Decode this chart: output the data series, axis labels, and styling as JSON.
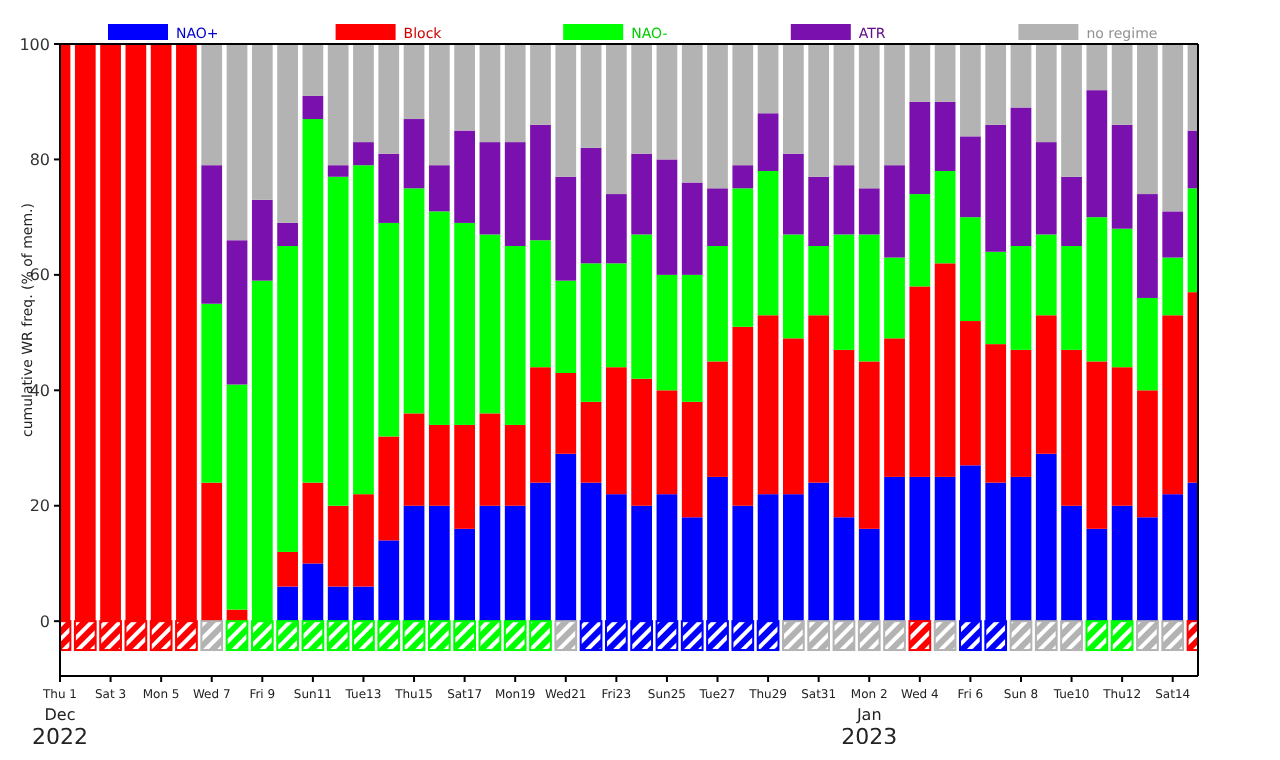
{
  "chart_data": {
    "type": "bar",
    "stacked": true,
    "ylabel": "cumulative WR freq. (% of mem.)",
    "categories": [
      "Thu 1",
      null,
      "Sat 3",
      null,
      "Mon 5",
      null,
      "Wed 7",
      null,
      "Fri 9",
      null,
      "Sun11",
      null,
      "Tue13",
      null,
      "Thu15",
      null,
      "Sat17",
      null,
      "Mon19",
      null,
      "Wed21",
      null,
      "Fri23",
      null,
      "Sun25",
      null,
      "Tue27",
      null,
      "Thu29",
      null,
      "Sat31",
      null,
      "Mon 2",
      null,
      "Wed 4",
      null,
      "Fri 6",
      null,
      "Sun 8",
      null,
      "Tue10",
      null,
      "Thu12",
      null,
      "Sat14",
      null
    ],
    "series": [
      {
        "name": "NAO+",
        "color": "#0000ff",
        "values": [
          0,
          0,
          0,
          0,
          0,
          0,
          0,
          0,
          0,
          6,
          10,
          6,
          6,
          14,
          20,
          20,
          16,
          20,
          20,
          24,
          29,
          24,
          22,
          20,
          22,
          18,
          25,
          20,
          22,
          22,
          24,
          18,
          16,
          25,
          25,
          25,
          27,
          24,
          25,
          29,
          20,
          16,
          20,
          18,
          22,
          24
        ]
      },
      {
        "name": "Block",
        "color": "#ff0000",
        "values": [
          100,
          100,
          100,
          100,
          100,
          100,
          24,
          2,
          0,
          6,
          14,
          14,
          16,
          18,
          16,
          14,
          18,
          16,
          14,
          20,
          14,
          14,
          22,
          22,
          18,
          20,
          20,
          31,
          31,
          27,
          29,
          29,
          29,
          24,
          33,
          37,
          25,
          24,
          22,
          24,
          27,
          29,
          24,
          22,
          31,
          33
        ]
      },
      {
        "name": "NAO-",
        "color": "#00ff00",
        "values": [
          0,
          0,
          0,
          0,
          0,
          0,
          31,
          39,
          59,
          53,
          63,
          57,
          57,
          37,
          39,
          37,
          35,
          31,
          31,
          22,
          16,
          24,
          18,
          25,
          20,
          22,
          20,
          24,
          25,
          18,
          12,
          20,
          22,
          14,
          16,
          16,
          18,
          16,
          18,
          14,
          18,
          25,
          24,
          16,
          10,
          18
        ]
      },
      {
        "name": "ATR",
        "color": "#7a10ad",
        "values": [
          0,
          0,
          0,
          0,
          0,
          0,
          24,
          25,
          14,
          4,
          4,
          2,
          4,
          12,
          12,
          8,
          16,
          16,
          18,
          20,
          18,
          20,
          12,
          14,
          20,
          16,
          10,
          4,
          10,
          14,
          12,
          12,
          8,
          16,
          16,
          12,
          14,
          22,
          24,
          16,
          12,
          22,
          18,
          18,
          8,
          10
        ]
      },
      {
        "name": "no regime",
        "color": "#b3b3b3",
        "values": [
          0,
          0,
          0,
          0,
          0,
          0,
          21,
          34,
          27,
          31,
          9,
          21,
          17,
          19,
          13,
          21,
          15,
          17,
          17,
          14,
          23,
          18,
          26,
          19,
          20,
          24,
          25,
          21,
          12,
          19,
          23,
          21,
          25,
          21,
          10,
          10,
          16,
          14,
          11,
          17,
          23,
          8,
          14,
          26,
          29,
          15
        ]
      },
      {
        "values": [
          -5,
          -5,
          -5,
          -5,
          -5,
          -5,
          -5,
          -5,
          -5,
          -5,
          -5,
          -5,
          -5,
          -5,
          -5,
          -5,
          -5,
          -5,
          -5,
          -5,
          -5,
          -5,
          -5,
          -5,
          -5,
          -5,
          -5,
          -5,
          -5,
          -5,
          -5,
          -5,
          -5,
          -5,
          -5,
          -5,
          -5,
          -5,
          -5,
          -5,
          -5,
          -5,
          -5,
          -5,
          -5,
          -5
        ],
        "colors": [
          "#ff0000",
          "#ff0000",
          "#ff0000",
          "#ff0000",
          "#ff0000",
          "#ff0000",
          "#b3b3b3",
          "#00ff00",
          "#00ff00",
          "#00ff00",
          "#00ff00",
          "#00ff00",
          "#00ff00",
          "#00ff00",
          "#00ff00",
          "#00ff00",
          "#00ff00",
          "#00ff00",
          "#00ff00",
          "#00ff00",
          "#b3b3b3",
          "#0000ff",
          "#0000ff",
          "#0000ff",
          "#0000ff",
          "#0000ff",
          "#0000ff",
          "#0000ff",
          "#0000ff",
          "#b3b3b3",
          "#b3b3b3",
          "#b3b3b3",
          "#b3b3b3",
          "#b3b3b3",
          "#ff0000",
          "#b3b3b3",
          "#0000ff",
          "#0000ff",
          "#b3b3b3",
          "#b3b3b3",
          "#b3b3b3",
          "#00ff00",
          "#00ff00",
          "#b3b3b3",
          "#b3b3b3",
          "#ff0000"
        ]
      }
    ],
    "ylim": [
      -9.5,
      100
    ],
    "yticks": [
      0,
      20,
      40,
      60,
      80,
      100
    ],
    "legend": "top",
    "annotations": [
      "Dec",
      "2022",
      "Jan",
      "2023"
    ]
  }
}
